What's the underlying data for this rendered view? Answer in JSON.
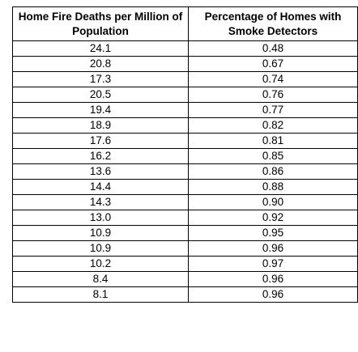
{
  "table": {
    "headers": [
      "Home Fire Deaths per Million of Population",
      "Percentage of Homes with Smoke Detectors"
    ],
    "rows": [
      [
        "24.1",
        "0.48"
      ],
      [
        "20.8",
        "0.67"
      ],
      [
        "17.3",
        "0.74"
      ],
      [
        "20.5",
        "0.76"
      ],
      [
        "19.4",
        "0.77"
      ],
      [
        "18.9",
        "0.82"
      ],
      [
        "17.6",
        "0.81"
      ],
      [
        "16.2",
        "0.85"
      ],
      [
        "13.6",
        "0.86"
      ],
      [
        "14.4",
        "0.88"
      ],
      [
        "14.3",
        "0.90"
      ],
      [
        "13.0",
        "0.92"
      ],
      [
        "10.9",
        "0.95"
      ],
      [
        "10.9",
        "0.96"
      ],
      [
        "10.2",
        "0.97"
      ],
      [
        "8.4",
        "0.96"
      ],
      [
        "8.1",
        "0.96"
      ]
    ]
  }
}
